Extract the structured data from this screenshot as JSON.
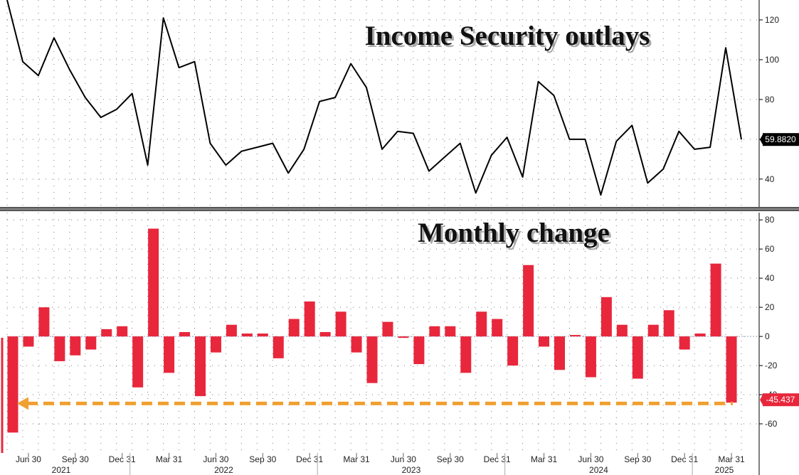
{
  "chart_data": [
    {
      "type": "line",
      "title": "Income Security outlays",
      "y_ticks": [
        40,
        60,
        80,
        100,
        120
      ],
      "ylim": [
        26,
        130
      ],
      "last_value_label": "59.8820",
      "series": [
        {
          "name": "Income Security outlays",
          "color": "#000000",
          "values": [
            130,
            99,
            92,
            111,
            95,
            81,
            71,
            75,
            83,
            47,
            121,
            96,
            99,
            58,
            47,
            54,
            56,
            58,
            43,
            55,
            79,
            81,
            98,
            86,
            55,
            64,
            63,
            44,
            51,
            58,
            33,
            52,
            61,
            41,
            89,
            82,
            60,
            60,
            32,
            59,
            67,
            38,
            45,
            64,
            55,
            56,
            106,
            59.882
          ]
        }
      ]
    },
    {
      "type": "bar",
      "title": "Monthly change",
      "y_ticks": [
        -60,
        -40,
        -20,
        0,
        20,
        40,
        60,
        80
      ],
      "ylim": [
        -80,
        85
      ],
      "last_value_label": "-45.437",
      "reference_line": {
        "value": -46,
        "color": "#f0a030"
      },
      "series": [
        {
          "name": "Monthly change",
          "color": "#e8273c",
          "values": [
            -66,
            -7,
            20,
            -17,
            -13,
            -9,
            5,
            7,
            -35,
            74,
            -25,
            3,
            -41,
            -11,
            8,
            2,
            2,
            -15,
            12,
            24,
            3,
            17,
            -11,
            -32,
            10,
            -1,
            -19,
            7,
            7,
            -25,
            17,
            12,
            -20,
            49,
            -7,
            -23,
            1,
            -28,
            27,
            8,
            -29,
            8,
            18,
            -9,
            2,
            50,
            -45.437
          ]
        }
      ]
    }
  ],
  "x_axis": {
    "tick_labels": [
      "Jun 30",
      "Sep 30",
      "Dec 31",
      "Mar 31",
      "Jun 30",
      "Sep 30",
      "Dec 31",
      "Mar 31",
      "Jun 30",
      "Sep 30",
      "Dec 31",
      "Mar 31",
      "Jun 30",
      "Sep 30",
      "Dec 31",
      "Mar 31"
    ],
    "years": [
      "2021",
      "2022",
      "2023",
      "2024",
      "2025"
    ]
  }
}
